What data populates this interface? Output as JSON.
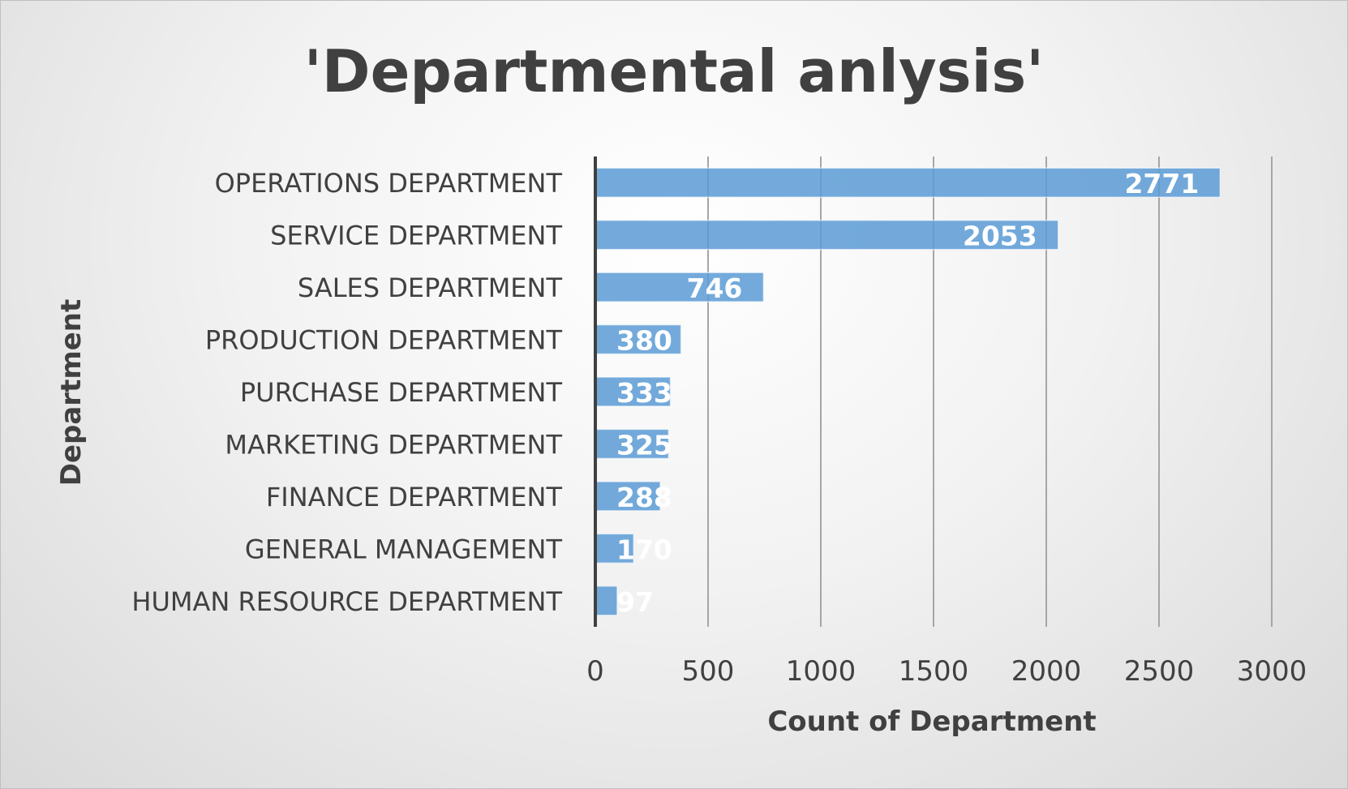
{
  "chart_data": {
    "type": "bar",
    "orientation": "horizontal",
    "title": "'Departmental anlysis'",
    "xlabel": "Count of Department",
    "ylabel": "Department",
    "categories": [
      "OPERATIONS DEPARTMENT",
      "SERVICE DEPARTMENT",
      "SALES DEPARTMENT",
      "PRODUCTION DEPARTMENT",
      "PURCHASE DEPARTMENT",
      "MARKETING DEPARTMENT",
      "FINANCE DEPARTMENT",
      "GENERAL MANAGEMENT",
      "HUMAN RESOURCE DEPARTMENT"
    ],
    "values": [
      2771,
      2053,
      746,
      380,
      333,
      325,
      288,
      170,
      97
    ],
    "data_labels": [
      "2771",
      "2053",
      "746",
      "380",
      "333",
      "325",
      "288",
      "170",
      "97"
    ],
    "xlim": [
      0,
      3000
    ],
    "xticks": [
      "0",
      "500",
      "1000",
      "1500",
      "2000",
      "2500",
      "3000"
    ],
    "grid": "vertical",
    "legend": "none",
    "colors": {
      "bar": "#5b9bd5",
      "text": "#404040",
      "grid": "#a6a6a6",
      "axis": "#404040"
    }
  }
}
